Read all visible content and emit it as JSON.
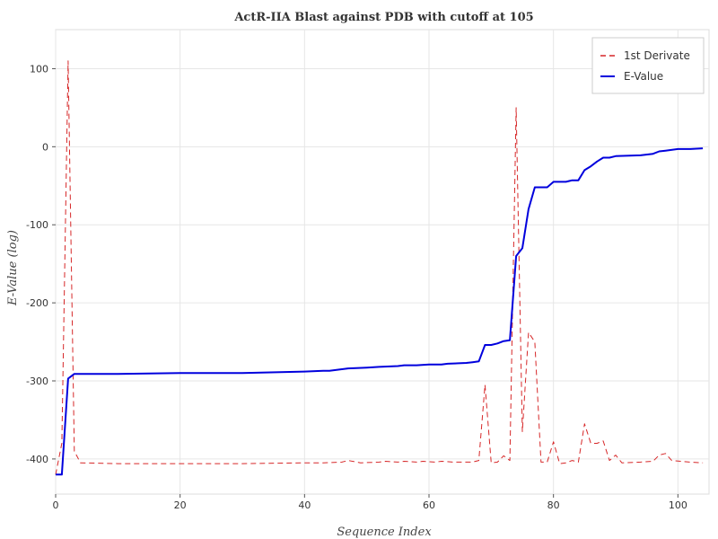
{
  "chart_data": {
    "type": "line",
    "title": "ActR-IIA Blast against PDB with cutoff at 105",
    "xlabel": "Sequence Index",
    "ylabel": "E-Value (log)",
    "xlim": [
      0,
      105
    ],
    "ylim": [
      -445,
      150
    ],
    "x_ticks": [
      0,
      20,
      40,
      60,
      80,
      100
    ],
    "y_ticks": [
      -400,
      -300,
      -200,
      -100,
      0,
      100
    ],
    "grid": true,
    "legend_position": "top-right",
    "series": [
      {
        "name": "1st Derivate",
        "color": "#d62728",
        "dash": "dashed",
        "points": [
          [
            0,
            -420
          ],
          [
            1,
            -380
          ],
          [
            2,
            110
          ],
          [
            3,
            -390
          ],
          [
            4,
            -405
          ],
          [
            10,
            -406
          ],
          [
            20,
            -406
          ],
          [
            30,
            -406
          ],
          [
            40,
            -405
          ],
          [
            43,
            -405
          ],
          [
            46,
            -404
          ],
          [
            47,
            -402
          ],
          [
            49,
            -405
          ],
          [
            52,
            -404
          ],
          [
            53,
            -403
          ],
          [
            55,
            -404
          ],
          [
            56,
            -403
          ],
          [
            58,
            -404
          ],
          [
            59,
            -403
          ],
          [
            61,
            -404
          ],
          [
            62,
            -403
          ],
          [
            64,
            -404
          ],
          [
            67,
            -404
          ],
          [
            68,
            -402
          ],
          [
            69,
            -305
          ],
          [
            70,
            -405
          ],
          [
            71,
            -404
          ],
          [
            72,
            -396
          ],
          [
            73,
            -402
          ],
          [
            74,
            50
          ],
          [
            75,
            -365
          ],
          [
            76,
            -238
          ],
          [
            77,
            -250
          ],
          [
            78,
            -404
          ],
          [
            79,
            -404
          ],
          [
            80,
            -378
          ],
          [
            81,
            -406
          ],
          [
            82,
            -405
          ],
          [
            83,
            -402
          ],
          [
            84,
            -404
          ],
          [
            85,
            -355
          ],
          [
            86,
            -380
          ],
          [
            87,
            -380
          ],
          [
            88,
            -377
          ],
          [
            89,
            -402
          ],
          [
            90,
            -395
          ],
          [
            91,
            -405
          ],
          [
            94,
            -404
          ],
          [
            96,
            -403
          ],
          [
            97,
            -395
          ],
          [
            98,
            -393
          ],
          [
            99,
            -402
          ],
          [
            102,
            -404
          ],
          [
            104,
            -405
          ]
        ]
      },
      {
        "name": "E-Value",
        "color": "#0000dd",
        "dash": "solid",
        "points": [
          [
            0,
            -420
          ],
          [
            1,
            -420
          ],
          [
            2,
            -297
          ],
          [
            3,
            -291
          ],
          [
            10,
            -291
          ],
          [
            20,
            -290
          ],
          [
            30,
            -290
          ],
          [
            40,
            -288
          ],
          [
            43,
            -287
          ],
          [
            44,
            -287
          ],
          [
            46,
            -285
          ],
          [
            47,
            -284
          ],
          [
            50,
            -283
          ],
          [
            52,
            -282
          ],
          [
            55,
            -281
          ],
          [
            56,
            -280
          ],
          [
            58,
            -280
          ],
          [
            60,
            -279
          ],
          [
            62,
            -279
          ],
          [
            63,
            -278
          ],
          [
            66,
            -277
          ],
          [
            67,
            -276
          ],
          [
            68,
            -275
          ],
          [
            69,
            -254
          ],
          [
            70,
            -254
          ],
          [
            71,
            -252
          ],
          [
            72,
            -249
          ],
          [
            73,
            -248
          ],
          [
            74,
            -140
          ],
          [
            75,
            -130
          ],
          [
            76,
            -80
          ],
          [
            77,
            -52
          ],
          [
            78,
            -52
          ],
          [
            79,
            -52
          ],
          [
            80,
            -45
          ],
          [
            82,
            -45
          ],
          [
            83,
            -43
          ],
          [
            84,
            -43
          ],
          [
            85,
            -30
          ],
          [
            86,
            -25
          ],
          [
            87,
            -19
          ],
          [
            88,
            -14
          ],
          [
            89,
            -14
          ],
          [
            90,
            -12
          ],
          [
            94,
            -11
          ],
          [
            96,
            -9
          ],
          [
            97,
            -6
          ],
          [
            98,
            -5
          ],
          [
            100,
            -3
          ],
          [
            102,
            -3
          ],
          [
            104,
            -2
          ]
        ]
      }
    ]
  }
}
